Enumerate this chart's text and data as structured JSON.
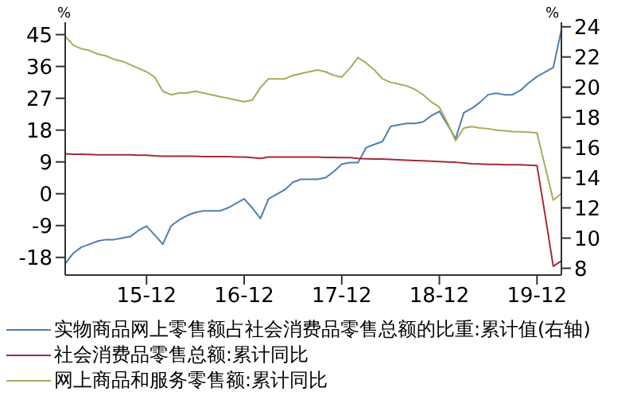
{
  "chart_data": {
    "type": "line",
    "categories": [
      null,
      null,
      null,
      null,
      null,
      null,
      null,
      null,
      null,
      null,
      "15-12",
      null,
      null,
      null,
      null,
      null,
      null,
      null,
      null,
      null,
      null,
      null,
      "16-12",
      null,
      null,
      null,
      null,
      null,
      null,
      null,
      null,
      null,
      null,
      null,
      "17-12",
      null,
      null,
      null,
      null,
      null,
      null,
      null,
      null,
      null,
      null,
      null,
      "18-12",
      null,
      null,
      null,
      null,
      null,
      null,
      null,
      null,
      null,
      null,
      null,
      "19-12",
      null,
      null,
      null
    ],
    "series": [
      {
        "name": "实物商品网上零售额占社会消费品零售总额的比重:累计值(右轴)",
        "color": "#4f7fb0",
        "axis": "y2",
        "values": [
          8.3,
          9.0,
          9.4,
          9.6,
          9.8,
          9.9,
          9.9,
          10.0,
          10.1,
          10.5,
          10.8,
          10.2,
          9.6,
          10.8,
          11.2,
          11.5,
          11.7,
          11.8,
          11.8,
          11.8,
          12.0,
          12.3,
          12.6,
          12.0,
          11.3,
          12.6,
          12.9,
          13.2,
          13.7,
          13.9,
          13.9,
          13.9,
          14.0,
          14.4,
          14.9,
          15.0,
          15.0,
          16.0,
          16.2,
          16.4,
          17.4,
          17.5,
          17.6,
          17.6,
          17.7,
          18.1,
          18.4,
          17.5,
          16.6,
          18.3,
          18.6,
          19.0,
          19.5,
          19.6,
          19.5,
          19.5,
          19.8,
          20.3,
          20.7,
          21.0,
          21.3,
          23.8
        ]
      },
      {
        "name": "社会消费品零售总额:累计同比",
        "color": "#a52a3a",
        "values": [
          11.3,
          11.2,
          11.2,
          11.1,
          11.0,
          11.0,
          11.0,
          11.0,
          11.0,
          10.9,
          10.9,
          10.7,
          10.6,
          10.6,
          10.6,
          10.6,
          10.6,
          10.5,
          10.5,
          10.5,
          10.5,
          10.4,
          10.4,
          10.2,
          10.0,
          10.4,
          10.4,
          10.4,
          10.4,
          10.4,
          10.4,
          10.4,
          10.3,
          10.3,
          10.2,
          10.2,
          10.0,
          9.9,
          9.8,
          9.8,
          9.7,
          9.6,
          9.5,
          9.4,
          9.3,
          9.2,
          9.1,
          9.0,
          8.9,
          8.7,
          8.5,
          8.4,
          8.3,
          8.3,
          8.2,
          8.2,
          8.2,
          8.1,
          8.0,
          -6.0,
          -20.5,
          -19.0
        ]
      },
      {
        "name": "网上商品和服务零售额:累计同比",
        "color": "#a8ab5a",
        "values": [
          44.5,
          42,
          41,
          40.5,
          39.5,
          39,
          38,
          37.5,
          36.5,
          35.5,
          34.5,
          33,
          29,
          28,
          28.5,
          28.5,
          29,
          28.5,
          28,
          27.5,
          27,
          26.5,
          26,
          26.5,
          30,
          32.5,
          32.5,
          32.5,
          33.5,
          34,
          34.5,
          35,
          34.5,
          33.5,
          33,
          35.5,
          38.5,
          37,
          35,
          32.5,
          31.5,
          31,
          30.5,
          29.5,
          28,
          26,
          24.5,
          20,
          15,
          18.6,
          19,
          18.6,
          18.4,
          18,
          17.8,
          17.6,
          17.5,
          17.4,
          17.2,
          7.7,
          -1.8,
          0.1
        ]
      }
    ],
    "ylabel": "%",
    "y2label": "%",
    "ylim": [
      -23,
      48.5
    ],
    "yticks": [
      -18,
      -9,
      0,
      9,
      18,
      27,
      36,
      45
    ],
    "y2lim": [
      7.55,
      24.3
    ],
    "y2ticks": [
      8,
      10,
      12,
      14,
      16,
      18,
      20,
      22,
      24
    ],
    "legend": "bottom",
    "grid": false,
    "marker": "none",
    "line_style": "solid"
  }
}
